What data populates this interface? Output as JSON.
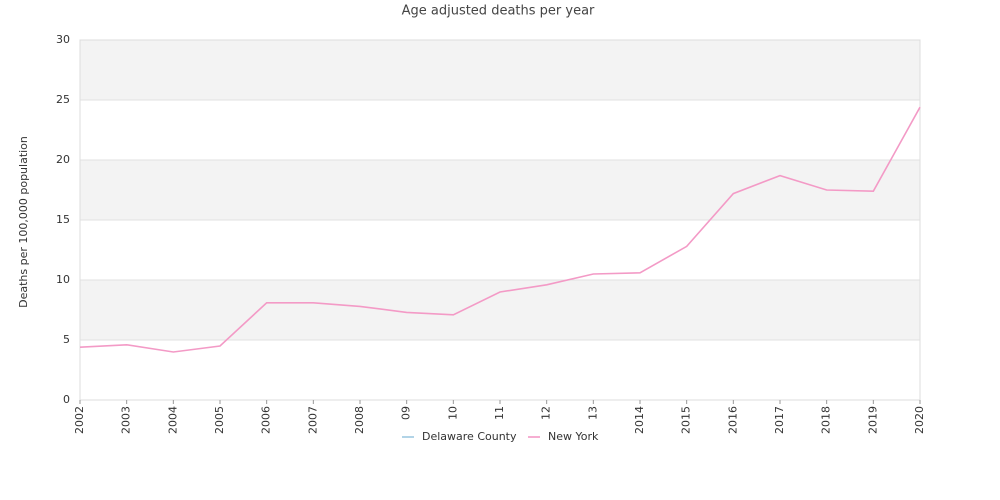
{
  "chart_data": {
    "type": "line",
    "title": "Age adjusted deaths per year",
    "y_label": "Deaths per 100,000 population",
    "categories": [
      "2002",
      "2003",
      "2004",
      "2005",
      "2006",
      "2007",
      "2008",
      "09",
      "10",
      "11",
      "12",
      "13",
      "2014",
      "2015",
      "2016",
      "2017",
      "2018",
      "2019",
      "2020"
    ],
    "series": [
      {
        "name": "Delaware County",
        "color": "#9ecae1",
        "values": [
          null,
          null,
          null,
          null,
          null,
          null,
          null,
          null,
          null,
          null,
          null,
          null,
          null,
          null,
          null,
          null,
          null,
          null,
          null
        ]
      },
      {
        "name": "New York",
        "color": "#f39ac6",
        "values": [
          4.4,
          4.6,
          4.0,
          4.5,
          8.1,
          8.1,
          7.8,
          7.3,
          7.1,
          9.0,
          9.6,
          10.5,
          10.6,
          12.8,
          17.2,
          18.7,
          17.5,
          17.4,
          24.4
        ]
      }
    ],
    "ylim": [
      0,
      30
    ],
    "yticks": [
      0,
      5,
      10,
      15,
      20,
      25,
      30
    ],
    "grid": true,
    "legend": "bottom"
  }
}
